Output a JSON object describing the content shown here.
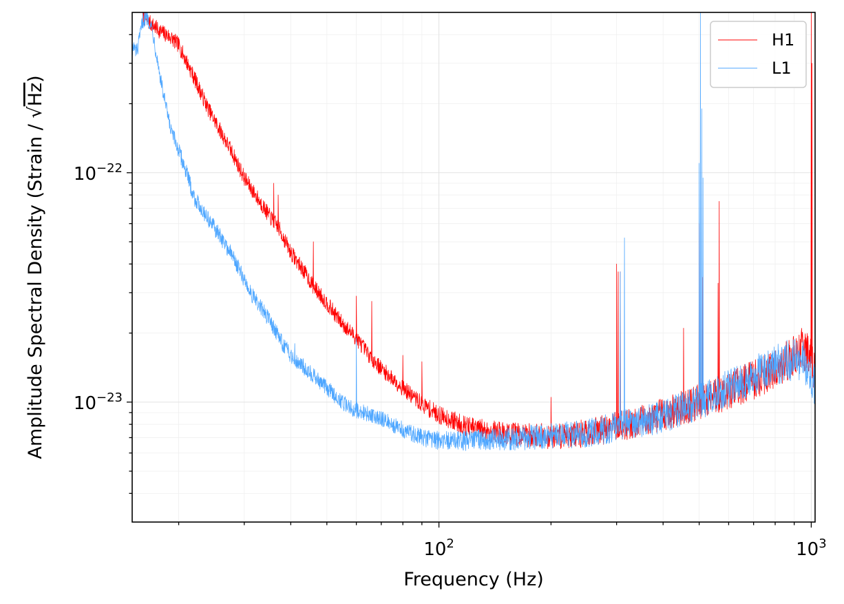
{
  "chart_data": {
    "type": "line",
    "title": "",
    "xlabel": "Frequency (Hz)",
    "ylabel_main": "Amplitude Spectral Density (Strain / ",
    "ylabel_sqrt": "Hz",
    "ylabel_close": ")",
    "xscale": "log",
    "yscale": "log",
    "xlim": [
      15.0,
      1024.0
    ],
    "ylim": [
      3e-24,
      5e-22
    ],
    "grid": true,
    "legend_position": "top-right",
    "x_ticks": [
      {
        "value": 100,
        "base": "10",
        "exp": "2"
      },
      {
        "value": 1000,
        "base": "10",
        "exp": "3"
      }
    ],
    "y_ticks": [
      {
        "value": 1e-23,
        "base": "10",
        "exp": "−23"
      },
      {
        "value": 1e-22,
        "base": "10",
        "exp": "−22"
      }
    ],
    "series": [
      {
        "name": "H1",
        "color": "#ff0000",
        "x": [
          16.0,
          17.0,
          18.0,
          19.0,
          20.0,
          22.0,
          24.0,
          26.0,
          28.0,
          30.0,
          33.0,
          35.0,
          37.0,
          40.0,
          43.0,
          46.0,
          50.0,
          55.0,
          60.0,
          65.0,
          70.0,
          80.0,
          90.0,
          100.0,
          120.0,
          150.0,
          200.0,
          250.0,
          300.0,
          400.0,
          500.0,
          600.0,
          700.0,
          800.0,
          900.0,
          950.0,
          1000.0,
          1024.0
        ],
        "y": [
          4.8e-22,
          4.4e-22,
          4.1e-22,
          3.9e-22,
          3.6e-22,
          2.6e-22,
          1.9e-22,
          1.5e-22,
          1.2e-22,
          9.5e-23,
          7.5e-23,
          6.5e-23,
          5.8e-23,
          4.5e-23,
          3.8e-23,
          3.2e-23,
          2.7e-23,
          2.2e-23,
          1.9e-23,
          1.6e-23,
          1.4e-23,
          1.15e-23,
          9.8e-24,
          8.8e-24,
          7.8e-24,
          7.3e-24,
          7.1e-24,
          7.3e-24,
          7.8e-24,
          8.8e-24,
          1e-23,
          1.12e-23,
          1.25e-23,
          1.4e-23,
          1.6e-23,
          1.75e-23,
          1.5e-23,
          1.35e-23
        ],
        "peaks": [
          {
            "x": 36.0,
            "y": 9e-23
          },
          {
            "x": 37.0,
            "y": 8e-23
          },
          {
            "x": 46.0,
            "y": 5e-23
          },
          {
            "x": 60.0,
            "y": 2.9e-23
          },
          {
            "x": 66.0,
            "y": 2.75e-23
          },
          {
            "x": 80.0,
            "y": 1.6e-23
          },
          {
            "x": 90.0,
            "y": 1.5e-23
          },
          {
            "x": 200.0,
            "y": 1.05e-23
          },
          {
            "x": 300.0,
            "y": 4e-23
          },
          {
            "x": 303.0,
            "y": 3.7e-23
          },
          {
            "x": 307.0,
            "y": 3.7e-23
          },
          {
            "x": 454.0,
            "y": 2.1e-23
          },
          {
            "x": 500.0,
            "y": 6e-23
          },
          {
            "x": 504.0,
            "y": 4.5e-23
          },
          {
            "x": 511.0,
            "y": 3.5e-23
          },
          {
            "x": 562.0,
            "y": 3.3e-23
          },
          {
            "x": 566.0,
            "y": 7.5e-23
          },
          {
            "x": 1000.0,
            "y": 5e-22
          },
          {
            "x": 1005.0,
            "y": 3e-22
          }
        ]
      },
      {
        "name": "L1",
        "color": "#4da6ff",
        "x": [
          15.0,
          15.5,
          16.0,
          16.5,
          17.0,
          18.0,
          19.0,
          20.0,
          21.0,
          22.0,
          24.0,
          26.0,
          28.0,
          30.0,
          32.0,
          35.0,
          38.0,
          40.0,
          45.0,
          50.0,
          55.0,
          60.0,
          70.0,
          80.0,
          90.0,
          100.0,
          120.0,
          150.0,
          200.0,
          250.0,
          300.0,
          400.0,
          500.0,
          600.0,
          700.0,
          800.0,
          900.0,
          950.0,
          1000.0,
          1024.0
        ],
        "y": [
          3.5e-22,
          3.4e-22,
          4.6e-22,
          4.8e-22,
          4.2e-22,
          2.4e-22,
          1.55e-22,
          1.25e-22,
          1e-22,
          7.8e-23,
          6.3e-23,
          5.2e-23,
          4.3e-23,
          3.4e-23,
          2.8e-23,
          2.3e-23,
          1.8e-23,
          1.6e-23,
          1.35e-23,
          1.15e-23,
          1e-23,
          9.2e-24,
          8.5e-24,
          7.6e-24,
          7e-24,
          6.8e-24,
          6.8e-24,
          6.9e-24,
          7.1e-24,
          7.3e-24,
          7.8e-24,
          8.6e-24,
          1e-23,
          1.15e-23,
          1.3e-23,
          1.45e-23,
          1.55e-23,
          1.5e-23,
          1.3e-23,
          1.2e-23
        ],
        "peaks": [
          {
            "x": 41.0,
            "y": 1.8e-23
          },
          {
            "x": 60.0,
            "y": 1.9e-23
          },
          {
            "x": 307.0,
            "y": 3.7e-23
          },
          {
            "x": 315.0,
            "y": 5.2e-23
          },
          {
            "x": 500.0,
            "y": 1.1e-22
          },
          {
            "x": 504.0,
            "y": 5e-22
          },
          {
            "x": 508.0,
            "y": 1.9e-22
          },
          {
            "x": 512.0,
            "y": 9.5e-23
          }
        ]
      }
    ]
  }
}
